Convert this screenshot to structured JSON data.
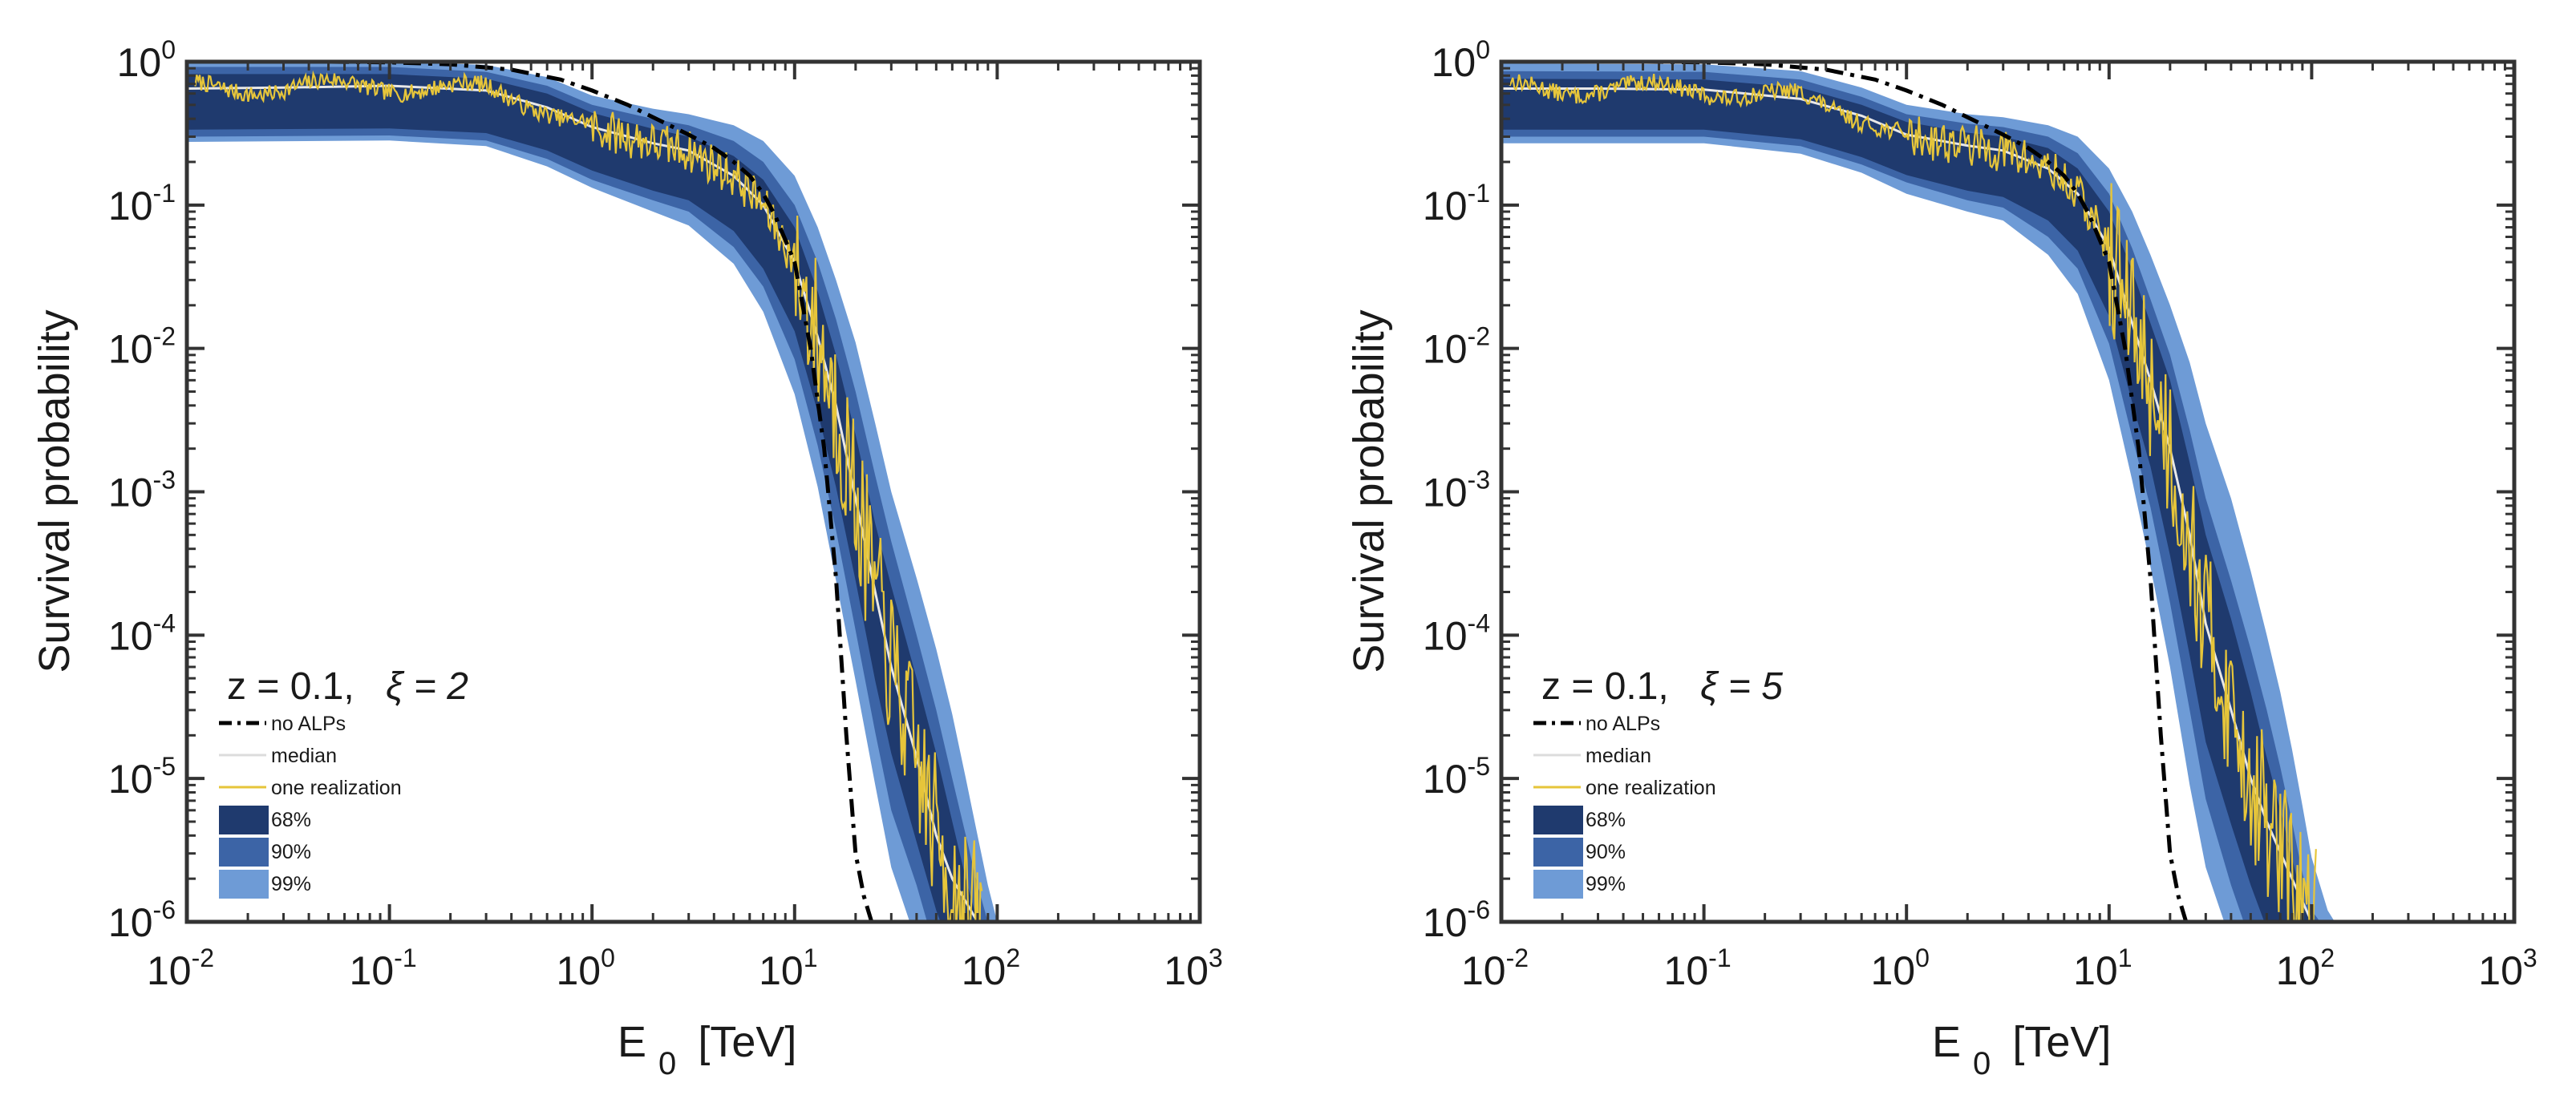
{
  "figure": {
    "colors": {
      "band68": "#1f3a6e",
      "band90": "#3c64a6",
      "band99": "#6e9bd6",
      "median": "#e8e8e8",
      "realization": "#e6c53a",
      "no_alps": "#000000",
      "axis": "#333333"
    }
  },
  "chart_data": [
    {
      "type": "line",
      "panel": "left",
      "title": "z = 0.1,   ξ = 2",
      "title_z": "z = 0.1,",
      "title_xi": "ξ = 2",
      "xlabel": "E",
      "xlabel_sub": "0",
      "xlabel_unit": "[TeV]",
      "ylabel": "Survival probability",
      "xscale": "log",
      "yscale": "log",
      "xlim": [
        0.01,
        1000
      ],
      "ylim": [
        1e-06,
        1
      ],
      "x_ticks": [
        {
          "base": "10",
          "exp": "-2"
        },
        {
          "base": "10",
          "exp": "-1"
        },
        {
          "base": "10",
          "exp": "0"
        },
        {
          "base": "10",
          "exp": "1"
        },
        {
          "base": "10",
          "exp": "2"
        },
        {
          "base": "10",
          "exp": "3"
        }
      ],
      "y_ticks": [
        {
          "base": "10",
          "exp": "0"
        },
        {
          "base": "10",
          "exp": "-1"
        },
        {
          "base": "10",
          "exp": "-2"
        },
        {
          "base": "10",
          "exp": "-3"
        },
        {
          "base": "10",
          "exp": "-4"
        },
        {
          "base": "10",
          "exp": "-5"
        },
        {
          "base": "10",
          "exp": "-6"
        }
      ],
      "legend": {
        "position": "bottom-left",
        "entries": [
          {
            "label": "no ALPs",
            "style": "dash-dot"
          },
          {
            "label": "median",
            "style": "line-white"
          },
          {
            "label": "one realization",
            "style": "line-yellow"
          },
          {
            "label": "68%",
            "style": "patch"
          },
          {
            "label": "90%",
            "style": "patch"
          },
          {
            "label": "99%",
            "style": "patch"
          }
        ]
      },
      "no_alps": {
        "x": [
          0.01,
          0.05,
          0.1,
          0.2,
          0.4,
          0.7,
          1,
          1.5,
          2,
          3,
          4,
          5,
          6,
          7,
          8,
          10,
          12,
          14,
          16,
          18,
          20,
          22,
          24
        ],
        "y": [
          1.0,
          1.0,
          0.99,
          0.96,
          0.88,
          0.75,
          0.63,
          0.5,
          0.41,
          0.31,
          0.25,
          0.2,
          0.16,
          0.12,
          0.085,
          0.04,
          0.01,
          0.002,
          0.00025,
          2e-05,
          3e-06,
          1.5e-06,
          1e-06
        ]
      },
      "median": {
        "x": [
          0.01,
          0.03,
          0.1,
          0.3,
          0.6,
          1,
          2,
          3,
          5,
          7,
          10,
          13,
          16,
          20,
          25,
          30,
          40,
          50,
          60,
          80
        ],
        "y": [
          0.65,
          0.66,
          0.68,
          0.63,
          0.48,
          0.35,
          0.27,
          0.24,
          0.16,
          0.1,
          0.04,
          0.012,
          0.004,
          0.0009,
          0.0002,
          6e-05,
          1.4e-05,
          4e-06,
          2e-06,
          1e-06
        ]
      },
      "band68": {
        "x": [
          0.01,
          0.1,
          0.3,
          0.6,
          1,
          2,
          3,
          5,
          7,
          10,
          13,
          16,
          20,
          25,
          30,
          40,
          50,
          60,
          70,
          80
        ],
        "lo": [
          0.56,
          0.57,
          0.53,
          0.4,
          0.29,
          0.21,
          0.18,
          0.11,
          0.06,
          0.022,
          0.006,
          0.0018,
          0.0004,
          8e-05,
          2.5e-05,
          6e-06,
          2e-06,
          1e-06,
          1e-06,
          1e-06
        ],
        "hi": [
          0.82,
          0.82,
          0.76,
          0.6,
          0.44,
          0.34,
          0.3,
          0.22,
          0.15,
          0.07,
          0.025,
          0.009,
          0.0025,
          0.0006,
          0.00022,
          5e-05,
          1.5e-05,
          5e-06,
          2e-06,
          1e-06
        ]
      },
      "band90": {
        "x": [
          0.01,
          0.1,
          0.3,
          0.6,
          1,
          2,
          3,
          5,
          7,
          10,
          13,
          16,
          20,
          25,
          30,
          40,
          50,
          60,
          70,
          80,
          90
        ],
        "lo": [
          0.5,
          0.51,
          0.47,
          0.35,
          0.25,
          0.18,
          0.15,
          0.085,
          0.045,
          0.014,
          0.0035,
          0.0009,
          0.00018,
          3.5e-05,
          1e-05,
          3e-06,
          1e-06,
          1e-06,
          1e-06,
          1e-06,
          1e-06
        ],
        "hi": [
          0.92,
          0.92,
          0.85,
          0.68,
          0.5,
          0.4,
          0.36,
          0.28,
          0.2,
          0.1,
          0.04,
          0.016,
          0.005,
          0.0013,
          0.00045,
          0.0001,
          3e-05,
          1e-05,
          4e-06,
          1.8e-06,
          1e-06
        ]
      },
      "band99": {
        "x": [
          0.01,
          0.1,
          0.3,
          0.6,
          1,
          2,
          3,
          5,
          7,
          10,
          13,
          16,
          20,
          25,
          30,
          40,
          50,
          60,
          70,
          80,
          90,
          100
        ],
        "lo": [
          0.46,
          0.47,
          0.43,
          0.31,
          0.22,
          0.15,
          0.12,
          0.065,
          0.03,
          0.008,
          0.0018,
          0.0004,
          8e-05,
          1.5e-05,
          4e-06,
          1.2e-06,
          1e-06,
          1e-06,
          1e-06,
          1e-06,
          1e-06,
          1e-06
        ],
        "hi": [
          1.0,
          1.0,
          0.95,
          0.78,
          0.58,
          0.47,
          0.43,
          0.36,
          0.28,
          0.16,
          0.07,
          0.03,
          0.011,
          0.003,
          0.001,
          0.00025,
          8e-05,
          2.8e-05,
          1e-05,
          4e-06,
          1.8e-06,
          1e-06
        ]
      },
      "realization_seed": 7
    },
    {
      "type": "line",
      "panel": "right",
      "title": "z = 0.1,   ξ = 5",
      "title_z": "z = 0.1,",
      "title_xi": "ξ = 5",
      "xlabel": "E",
      "xlabel_sub": "0",
      "xlabel_unit": "[TeV]",
      "ylabel": "Survival probability",
      "xscale": "log",
      "yscale": "log",
      "xlim": [
        0.01,
        1000
      ],
      "ylim": [
        1e-06,
        1
      ],
      "x_ticks": [
        {
          "base": "10",
          "exp": "-2"
        },
        {
          "base": "10",
          "exp": "-1"
        },
        {
          "base": "10",
          "exp": "0"
        },
        {
          "base": "10",
          "exp": "1"
        },
        {
          "base": "10",
          "exp": "2"
        },
        {
          "base": "10",
          "exp": "3"
        }
      ],
      "y_ticks": [
        {
          "base": "10",
          "exp": "0"
        },
        {
          "base": "10",
          "exp": "-1"
        },
        {
          "base": "10",
          "exp": "-2"
        },
        {
          "base": "10",
          "exp": "-3"
        },
        {
          "base": "10",
          "exp": "-4"
        },
        {
          "base": "10",
          "exp": "-5"
        },
        {
          "base": "10",
          "exp": "-6"
        }
      ],
      "legend": {
        "position": "bottom-left",
        "entries": [
          {
            "label": "no ALPs",
            "style": "dash-dot"
          },
          {
            "label": "median",
            "style": "line-white"
          },
          {
            "label": "one realization",
            "style": "line-yellow"
          },
          {
            "label": "68%",
            "style": "patch"
          },
          {
            "label": "90%",
            "style": "patch"
          },
          {
            "label": "99%",
            "style": "patch"
          }
        ]
      },
      "no_alps": {
        "x": [
          0.01,
          0.05,
          0.1,
          0.2,
          0.4,
          0.7,
          1,
          1.5,
          2,
          3,
          4,
          5,
          6,
          7,
          8,
          10,
          12,
          14,
          16,
          18,
          20,
          22,
          24
        ],
        "y": [
          1.0,
          1.0,
          0.99,
          0.96,
          0.88,
          0.75,
          0.63,
          0.5,
          0.41,
          0.31,
          0.25,
          0.2,
          0.16,
          0.12,
          0.085,
          0.04,
          0.01,
          0.002,
          0.00025,
          2e-05,
          3e-06,
          1.5e-06,
          1e-06
        ]
      },
      "median": {
        "x": [
          0.01,
          0.03,
          0.1,
          0.3,
          0.6,
          1,
          2,
          3,
          5,
          7,
          10,
          13,
          16,
          20,
          25,
          30,
          40,
          50,
          60,
          80,
          100
        ],
        "y": [
          0.65,
          0.65,
          0.64,
          0.55,
          0.42,
          0.31,
          0.26,
          0.24,
          0.18,
          0.12,
          0.05,
          0.015,
          0.006,
          0.002,
          0.0005,
          0.00012,
          3e-05,
          1e-05,
          5e-06,
          2e-06,
          1e-06
        ]
      },
      "band68": {
        "x": [
          0.01,
          0.1,
          0.3,
          0.6,
          1,
          2,
          3,
          5,
          7,
          10,
          13,
          16,
          20,
          25,
          30,
          40,
          50,
          60,
          70,
          80,
          90,
          100
        ],
        "lo": [
          0.56,
          0.56,
          0.48,
          0.36,
          0.27,
          0.21,
          0.19,
          0.13,
          0.08,
          0.028,
          0.007,
          0.0025,
          0.0006,
          0.00012,
          3e-05,
          8e-06,
          3e-06,
          1.5e-06,
          1e-06,
          1e-06,
          1e-06,
          1e-06
        ],
        "hi": [
          0.76,
          0.75,
          0.66,
          0.5,
          0.38,
          0.32,
          0.3,
          0.25,
          0.18,
          0.09,
          0.035,
          0.015,
          0.006,
          0.0016,
          0.0005,
          0.00013,
          4e-05,
          1.4e-05,
          6e-06,
          2.8e-06,
          1.4e-06,
          1e-06
        ]
      },
      "band90": {
        "x": [
          0.01,
          0.1,
          0.3,
          0.6,
          1,
          2,
          3,
          5,
          7,
          10,
          13,
          16,
          20,
          25,
          30,
          40,
          50,
          60,
          70,
          80,
          90,
          100,
          110
        ],
        "lo": [
          0.5,
          0.5,
          0.43,
          0.32,
          0.24,
          0.18,
          0.16,
          0.1,
          0.06,
          0.018,
          0.004,
          0.0013,
          0.00028,
          5e-05,
          1.2e-05,
          3e-06,
          1.2e-06,
          1e-06,
          1e-06,
          1e-06,
          1e-06,
          1e-06,
          1e-06
        ],
        "hi": [
          0.86,
          0.85,
          0.75,
          0.57,
          0.43,
          0.37,
          0.35,
          0.3,
          0.23,
          0.12,
          0.05,
          0.022,
          0.009,
          0.0027,
          0.0009,
          0.00024,
          8e-05,
          3e-05,
          1.2e-05,
          5e-06,
          2.2e-06,
          1.2e-06,
          1e-06
        ]
      },
      "band99": {
        "x": [
          0.01,
          0.1,
          0.3,
          0.6,
          1,
          2,
          3,
          5,
          7,
          10,
          13,
          16,
          20,
          25,
          30,
          40,
          50,
          60,
          70,
          80,
          90,
          100,
          120,
          130
        ],
        "lo": [
          0.45,
          0.45,
          0.38,
          0.28,
          0.2,
          0.15,
          0.13,
          0.075,
          0.04,
          0.01,
          0.002,
          0.0005,
          0.0001,
          1.5e-05,
          4e-06,
          1.2e-06,
          1e-06,
          1e-06,
          1e-06,
          1e-06,
          1e-06,
          1e-06,
          1e-06,
          1e-06
        ],
        "hi": [
          0.97,
          0.96,
          0.86,
          0.66,
          0.5,
          0.43,
          0.41,
          0.36,
          0.3,
          0.18,
          0.09,
          0.045,
          0.02,
          0.008,
          0.003,
          0.0009,
          0.00028,
          0.0001,
          4e-05,
          1.6e-05,
          6.5e-06,
          2.8e-06,
          1.2e-06,
          1e-06
        ]
      },
      "realization_seed": 13
    }
  ]
}
